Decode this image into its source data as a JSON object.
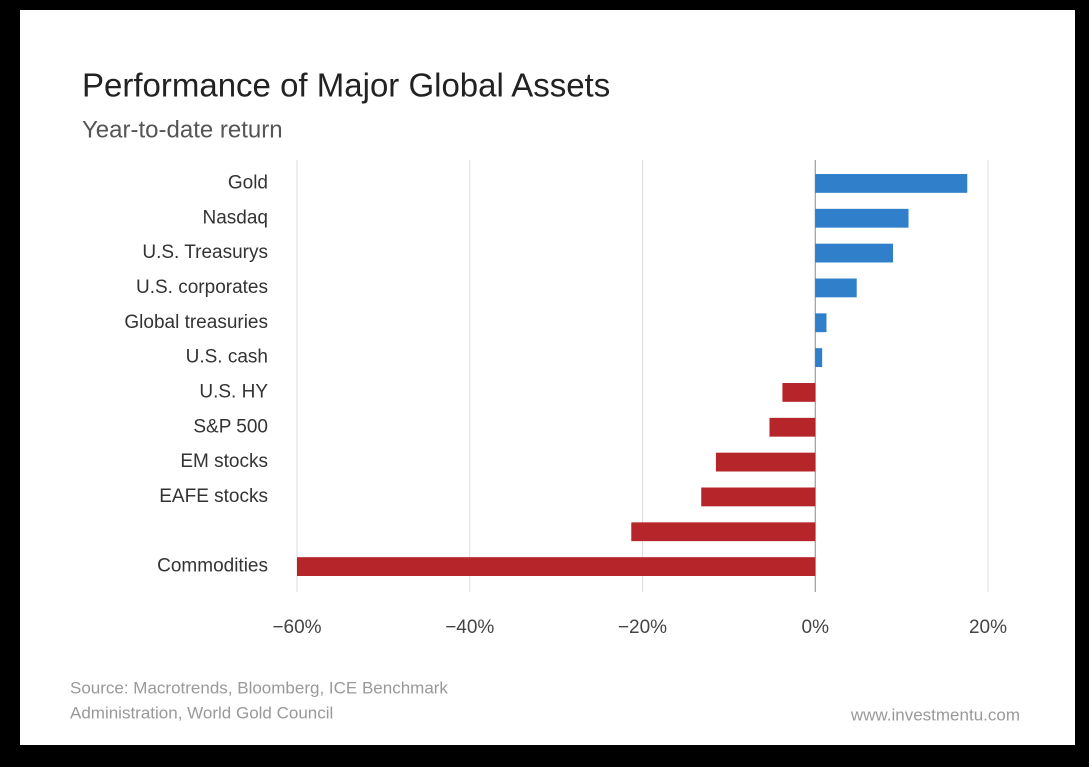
{
  "chart_data": {
    "type": "hbar",
    "title": "Performance of Major Global Assets",
    "subtitle": "Year-to-date return",
    "categories": [
      "Gold",
      "Nasdaq",
      "U.S. Treasurys",
      "U.S. corporates",
      "Global treasuries",
      "U.S. cash",
      "U.S. HY",
      "S&P 500",
      "EM stocks",
      "EAFE stocks",
      null,
      "Commodities"
    ],
    "values": [
      17.6,
      10.8,
      9.0,
      4.8,
      1.3,
      0.8,
      -3.8,
      -5.3,
      -11.5,
      -13.2,
      -21.3,
      -60
    ],
    "positive_color": "#2f7fcb",
    "negative_color": "#b5252a",
    "xlim": [
      -60,
      20
    ],
    "xticks": [
      {
        "value": -60,
        "label": "−60%"
      },
      {
        "value": -40,
        "label": "−40%"
      },
      {
        "value": -20,
        "label": "−20%"
      },
      {
        "value": 0,
        "label": "0%"
      },
      {
        "value": 20,
        "label": "20%"
      }
    ],
    "grid": true,
    "source": [
      "Source: Macrotrends, Bloomberg, ICE Benchmark",
      "Administration, World Gold Council"
    ],
    "credit": "www.investmentu.com"
  }
}
